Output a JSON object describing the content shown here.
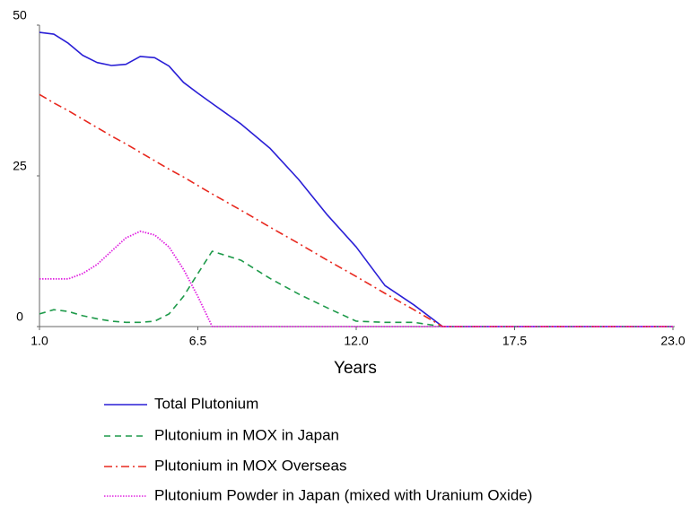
{
  "chart_data": {
    "type": "line",
    "xlabel": "Years",
    "x": [
      1,
      1.5,
      2,
      2.5,
      3,
      3.5,
      4,
      4.5,
      5,
      5.5,
      6,
      6.5,
      7,
      8,
      9,
      10,
      11,
      12,
      13,
      14,
      15,
      23
    ],
    "series": [
      {
        "name": "Total Plutonium",
        "color": "#2a1fd6",
        "dash": "solid",
        "values": [
          48.8,
          48.5,
          47,
          45,
          43.8,
          43.3,
          43.5,
          44.8,
          44.6,
          43.2,
          40.5,
          38.7,
          37,
          33.6,
          29.6,
          24.4,
          18.5,
          13.2,
          6.8,
          3.6,
          0,
          0
        ]
      },
      {
        "name": "Plutonium in MOX in Japan",
        "color": "#1e9a4a",
        "dash": "dashed",
        "values": [
          2.1,
          2.8,
          2.5,
          1.8,
          1.3,
          0.9,
          0.7,
          0.7,
          0.9,
          2.1,
          5,
          8.8,
          12.5,
          11,
          8,
          5.4,
          3.1,
          0.9,
          0.7,
          0.7,
          0,
          0
        ]
      },
      {
        "name": "Plutonium in MOX Overseas",
        "color": "#e8281e",
        "dash": "dashdot",
        "values": [
          38.5,
          37.1,
          35.8,
          34.4,
          33,
          31.6,
          30.3,
          28.9,
          27.5,
          26.1,
          24.8,
          23.4,
          22,
          19.3,
          16.5,
          13.8,
          11,
          8.3,
          5.5,
          2.8,
          0,
          0
        ]
      },
      {
        "name": "Plutonium Powder in Japan (mixed with Uranium Oxide)",
        "color": "#e020e0",
        "dash": "dotted",
        "values": [
          7.9,
          7.9,
          7.9,
          8.8,
          10.3,
          12.5,
          14.7,
          15.8,
          15.2,
          13.2,
          9.5,
          5,
          0,
          0,
          0,
          0,
          0,
          0,
          0,
          0,
          0,
          0
        ]
      }
    ],
    "xlim": [
      1,
      23
    ],
    "xticks": [
      {
        "value": 1,
        "label": "1.0"
      },
      6.5,
      {
        "value": 12,
        "label": "12.0"
      },
      17.5,
      {
        "value": 23,
        "label": "23.0"
      }
    ],
    "ylim": [
      0,
      50
    ],
    "yticks": [
      0,
      25,
      50
    ],
    "grid": false,
    "legend": "bottom"
  }
}
